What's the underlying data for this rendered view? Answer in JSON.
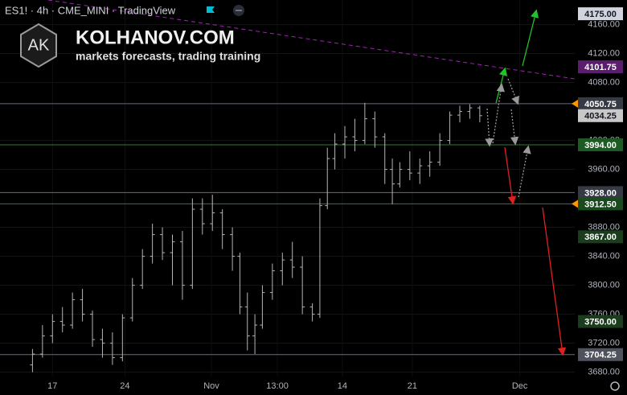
{
  "header": {
    "symbol": "ES1! · 4h · CME_MINI · TradingView"
  },
  "branding": {
    "logo": "AK",
    "site": "KOLHANOV.COM",
    "tagline": "markets forecasts, trading training"
  },
  "chart_data": {
    "type": "ohlc",
    "color": "#b5b5b5",
    "x": [
      13,
      17,
      21,
      25,
      29,
      33,
      37,
      41,
      45,
      49,
      53,
      57,
      61,
      65,
      69,
      73,
      77,
      81,
      85,
      89,
      93,
      96,
      99,
      102,
      105,
      109,
      113,
      117,
      121,
      125,
      128,
      131,
      134,
      138,
      142,
      146,
      150,
      154,
      157,
      160,
      164,
      168,
      172,
      176,
      180,
      184,
      188,
      192
    ],
    "open": [
      3690,
      3705,
      3730,
      3750,
      3745,
      3780,
      3760,
      3725,
      3720,
      3700,
      3755,
      3800,
      3840,
      3870,
      3845,
      3860,
      3800,
      3905,
      3885,
      3900,
      3870,
      3840,
      3770,
      3730,
      3745,
      3790,
      3820,
      3835,
      3825,
      3770,
      3760,
      3910,
      3975,
      3995,
      4005,
      4000,
      4030,
      4005,
      3960,
      3940,
      3960,
      3955,
      3965,
      3970,
      4000,
      4035,
      4040,
      4045
    ],
    "high": [
      3712,
      3745,
      3760,
      3770,
      3790,
      3795,
      3765,
      3740,
      3735,
      3760,
      3810,
      3850,
      3885,
      3880,
      3870,
      3875,
      3920,
      3920,
      3925,
      3905,
      3880,
      3845,
      3790,
      3760,
      3800,
      3830,
      3845,
      3860,
      3840,
      3775,
      3920,
      3990,
      4010,
      4020,
      4030,
      4052,
      4040,
      4010,
      3975,
      3970,
      3985,
      3975,
      3985,
      4010,
      4040,
      4048,
      4050,
      4048
    ],
    "low": [
      3680,
      3700,
      3720,
      3735,
      3740,
      3750,
      3715,
      3700,
      3690,
      3695,
      3750,
      3795,
      3830,
      3835,
      3800,
      3780,
      3795,
      3870,
      3875,
      3850,
      3820,
      3760,
      3710,
      3705,
      3740,
      3780,
      3800,
      3810,
      3760,
      3750,
      3755,
      3905,
      3960,
      3975,
      3985,
      3995,
      3990,
      3940,
      3912,
      3935,
      3945,
      3940,
      3950,
      3965,
      3995,
      4025,
      4030,
      4025
    ],
    "close": [
      3705,
      3730,
      3750,
      3745,
      3780,
      3760,
      3725,
      3720,
      3700,
      3755,
      3800,
      3840,
      3870,
      3845,
      3860,
      3800,
      3905,
      3885,
      3900,
      3870,
      3840,
      3770,
      3730,
      3745,
      3790,
      3820,
      3835,
      3825,
      3770,
      3760,
      3910,
      3975,
      3995,
      4005,
      4000,
      4030,
      4005,
      3960,
      3940,
      3960,
      3955,
      3965,
      3970,
      4000,
      4035,
      4040,
      4045,
      4034.25
    ],
    "xlim": [
      0,
      230
    ],
    "xticks": [
      {
        "value": 21,
        "label": "17"
      },
      {
        "value": 50,
        "label": "24"
      },
      {
        "value": 84.6,
        "label": "Nov"
      },
      {
        "value": 111,
        "label": "13:00"
      },
      {
        "value": 137,
        "label": "14"
      },
      {
        "value": 165,
        "label": "21"
      },
      {
        "value": 208,
        "label": "Dec"
      }
    ],
    "ylim": [
      3674,
      4194
    ],
    "yticks": [
      {
        "value": 3680,
        "label": "3680.00"
      },
      {
        "value": 3720,
        "label": "3720.00"
      },
      {
        "value": 3760,
        "label": "3760.00"
      },
      {
        "value": 3800,
        "label": "3800.00"
      },
      {
        "value": 3840,
        "label": "3840.00"
      },
      {
        "value": 3880,
        "label": "3880.00"
      },
      {
        "value": 3960,
        "label": "3960.00"
      },
      {
        "value": 4000,
        "label": "4000.00"
      },
      {
        "value": 4080,
        "label": "4080.00"
      },
      {
        "value": 4120,
        "label": "4120.00"
      },
      {
        "value": 4160,
        "label": "4160.00"
      }
    ],
    "grid": true,
    "levels": [
      {
        "value": 4175,
        "label": "4175.00",
        "color": "#d1d4dc",
        "text_color": "#131722",
        "line": false,
        "marker": false
      },
      {
        "value": 4101.75,
        "label": "4101.75",
        "color": "#5b1d6e",
        "text_color": "#ffffff",
        "line": false,
        "marker": false
      },
      {
        "value": 4050.75,
        "label": "4050.75",
        "color": "#363a45",
        "text_color": "#ffffff",
        "line": true,
        "marker": true
      },
      {
        "value": 4034.25,
        "label": "4034.25",
        "color": "#c8c8c8",
        "text_color": "#131722",
        "line": false,
        "marker": false
      },
      {
        "value": 3994,
        "label": "3994.00",
        "color": "#1e5a23",
        "text_color": "#ffffff",
        "line": true,
        "marker": false
      },
      {
        "value": 3928,
        "label": "3928.00",
        "color": "#363a45",
        "text_color": "#ffffff",
        "line": true,
        "marker": false
      },
      {
        "value": 3912.5,
        "label": "3912.50",
        "color": "#1b4a1e",
        "text_color": "#ffffff",
        "line": true,
        "marker": true
      },
      {
        "value": 3867,
        "label": "3867.00",
        "color": "#1b3d1e",
        "text_color": "#ffffff",
        "line": false,
        "marker": false
      },
      {
        "value": 3750,
        "label": "3750.00",
        "color": "#1b3d1e",
        "text_color": "#ffffff",
        "line": false,
        "marker": false
      },
      {
        "value": 3704.25,
        "label": "3704.25",
        "color": "#50535e",
        "text_color": "#ffffff",
        "line": true,
        "marker": false
      }
    ]
  }
}
